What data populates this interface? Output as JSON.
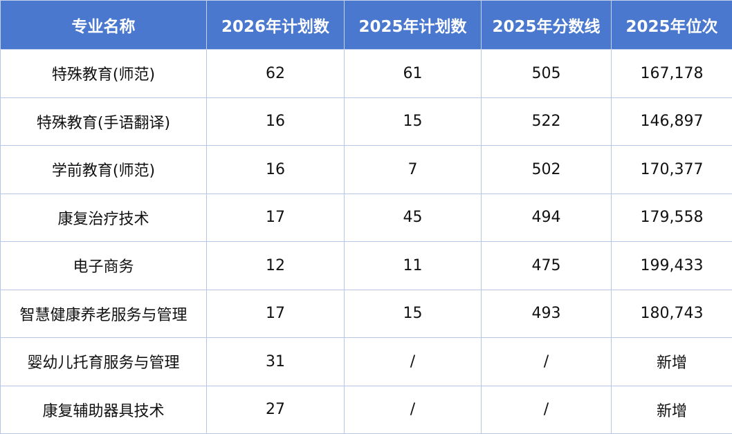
{
  "table": {
    "header": [
      "专业名称",
      "2026年计划数",
      "2025年计划数",
      "2025年分数线",
      "2025年位次"
    ],
    "rows": [
      [
        "特殊教育(师范)",
        "62",
        "61",
        "505",
        "167,178"
      ],
      [
        "特殊教育(手语翻译)",
        "16",
        "15",
        "522",
        "146,897"
      ],
      [
        "学前教育(师范)",
        "16",
        "7",
        "502",
        "170,377"
      ],
      [
        "康复治疗技术",
        "17",
        "45",
        "494",
        "179,558"
      ],
      [
        "电子商务",
        "12",
        "11",
        "475",
        "199,433"
      ],
      [
        "智慧健康养老服务与管理",
        "17",
        "15",
        "493",
        "180,743"
      ],
      [
        "婴幼儿托育服务与管理",
        "31",
        "/",
        "/",
        "新增"
      ],
      [
        "康复辅助器具技术",
        "27",
        "/",
        "/",
        "新增"
      ]
    ]
  }
}
